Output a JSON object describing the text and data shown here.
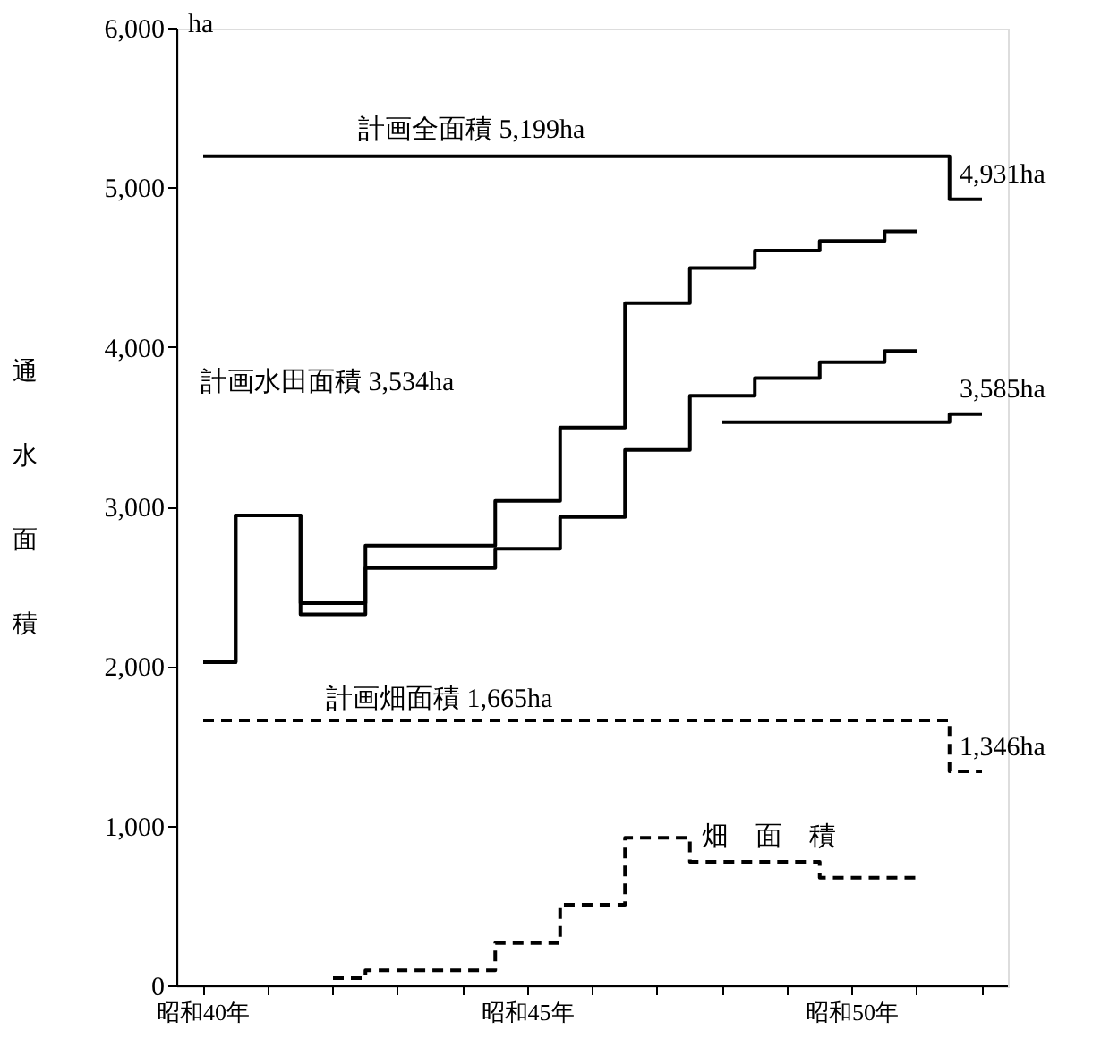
{
  "chart_data": {
    "type": "step",
    "ylabel": "通水面積",
    "categories": [
      "昭和40年",
      null,
      null,
      null,
      null,
      "昭和45年",
      null,
      null,
      null,
      null,
      "昭和50年",
      null,
      null
    ],
    "ylim": [
      0,
      6000
    ],
    "yticks": [
      0,
      {
        "value": 1000,
        "label": "1,000"
      },
      {
        "value": 2000,
        "label": "2,000"
      },
      {
        "value": 3000,
        "label": "3,000"
      },
      {
        "value": 4000,
        "label": "4,000"
      },
      {
        "value": 5000,
        "label": "5,000"
      },
      {
        "value": 6000,
        "label": "6,000"
      }
    ],
    "grid": false,
    "marker": "none",
    "series": [
      {
        "color": "#000000",
        "line_style": "solid",
        "values": [
          2030,
          2950,
          2400,
          2760,
          2760,
          3040,
          3500,
          4280,
          4500,
          4610,
          4670,
          4730,
          null
        ]
      },
      {
        "color": "#000000",
        "line_style": "solid",
        "values": [
          2030,
          2950,
          2330,
          2620,
          2620,
          2740,
          2940,
          3360,
          3700,
          3810,
          3910,
          3980,
          null
        ]
      },
      {
        "color": "#000000",
        "line_style": "solid",
        "values": [
          5199,
          5199,
          5199,
          5199,
          5199,
          5199,
          5199,
          5199,
          5199,
          5199,
          5199,
          5199,
          4931
        ]
      },
      {
        "color": "#000000",
        "line_style": "solid",
        "values": [
          null,
          null,
          null,
          null,
          null,
          null,
          null,
          null,
          3534,
          3534,
          3534,
          3534,
          3585
        ]
      },
      {
        "color": "#000000",
        "line_style": "dashed",
        "values": [
          1665,
          1665,
          1665,
          1665,
          1665,
          1665,
          1665,
          1665,
          1665,
          1665,
          1665,
          1665,
          1346
        ]
      },
      {
        "color": "#000000",
        "line_style": "dashed",
        "values": [
          null,
          null,
          50,
          100,
          100,
          270,
          510,
          930,
          780,
          780,
          680,
          680,
          null
        ]
      }
    ],
    "annotations": [
      "ha",
      "計画全面積 5,199ha",
      "4,931ha",
      "計画水田面積 3,534ha",
      "3,585ha",
      "計画畑面積 1,665ha",
      "1,346ha",
      "畑　面　積"
    ]
  }
}
